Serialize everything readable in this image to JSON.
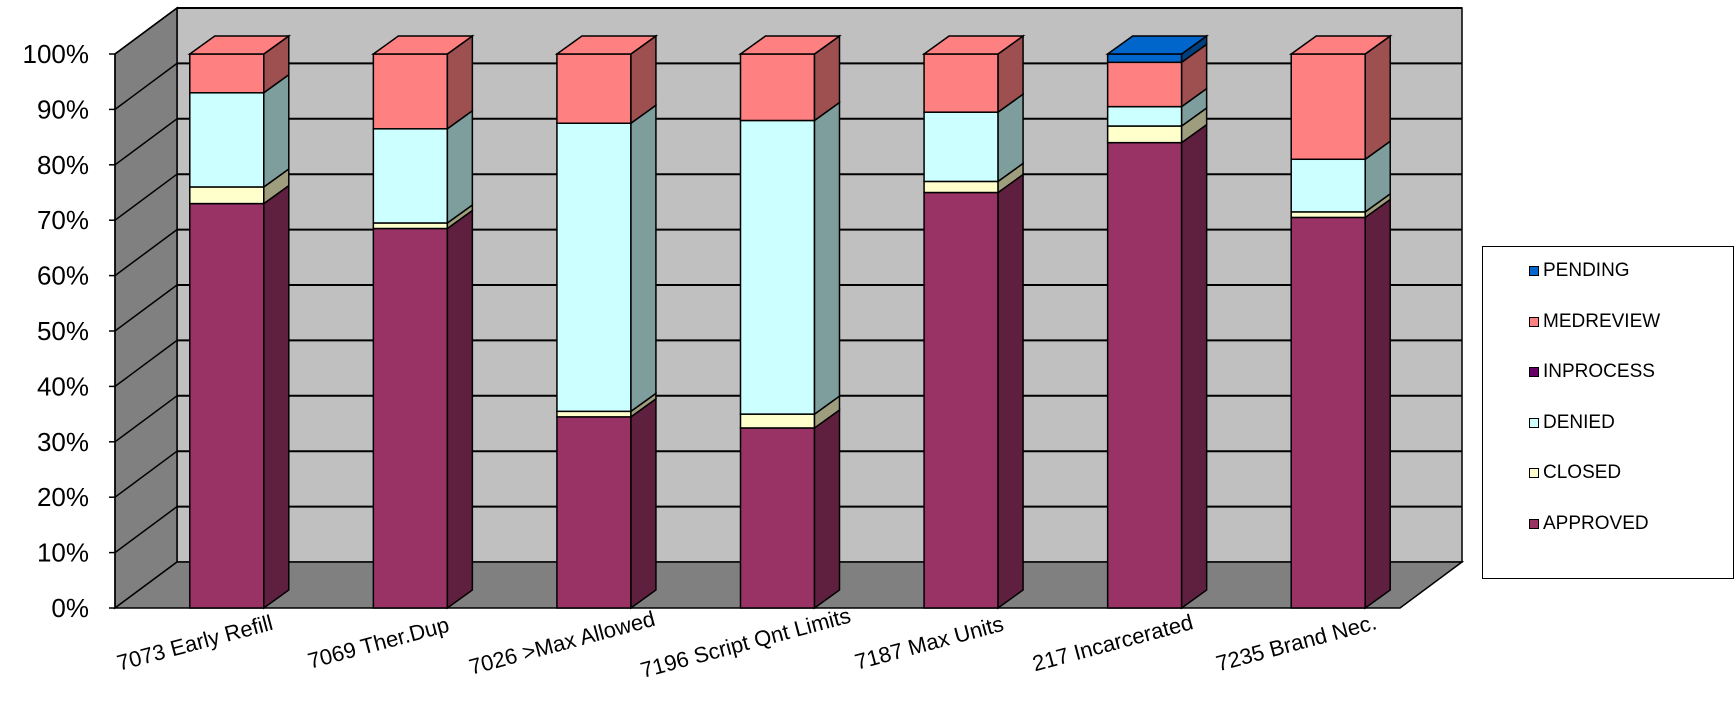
{
  "chart_data": {
    "type": "bar",
    "stacked": true,
    "percent_stacked": true,
    "three_d": true,
    "title": "",
    "xlabel": "",
    "ylabel": "",
    "ylim": [
      0,
      100
    ],
    "y_ticks": [
      "0%",
      "10%",
      "20%",
      "30%",
      "40%",
      "50%",
      "60%",
      "70%",
      "80%",
      "90%",
      "100%"
    ],
    "grid": true,
    "legend_position": "right",
    "categories": [
      "7073 Early Refill",
      "7069 Ther.Dup",
      "7026 >Max Allowed",
      "7196  Script Qnt Limits",
      "7187 Max Units",
      "217  Incarcerated",
      "7235  Brand Nec."
    ],
    "series": [
      {
        "name": "APPROVED",
        "color": "#993366",
        "values": [
          73,
          68.5,
          34.5,
          32.5,
          75,
          84,
          70.5
        ]
      },
      {
        "name": "CLOSED",
        "color": "#FFFFCC",
        "values": [
          3,
          1,
          1,
          2.5,
          2,
          3,
          1
        ]
      },
      {
        "name": "DENIED",
        "color": "#CCFFFF",
        "values": [
          17,
          17,
          52,
          53,
          12.5,
          3.5,
          9.5
        ]
      },
      {
        "name": "INPROCESS",
        "color": "#660066",
        "values": [
          0,
          0,
          0,
          0,
          0,
          0,
          0
        ]
      },
      {
        "name": "MEDREVIEW",
        "color": "#FF8080",
        "values": [
          7,
          13.5,
          12.5,
          12,
          10.5,
          8,
          19
        ]
      },
      {
        "name": "PENDING",
        "color": "#0066CC",
        "values": [
          0,
          0,
          0,
          0,
          0,
          1.5,
          0
        ]
      }
    ],
    "legend": [
      "PENDING",
      "MEDREVIEW",
      "INPROCESS",
      "DENIED",
      "CLOSED",
      "APPROVED"
    ]
  }
}
